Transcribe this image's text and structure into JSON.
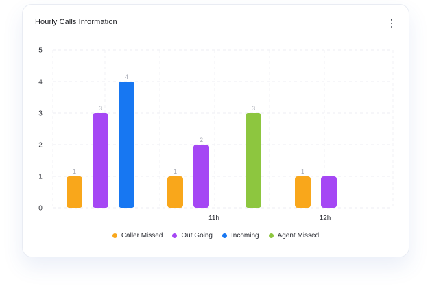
{
  "card": {
    "title": "Hourly Calls Information",
    "menu_icon": "more-vertical-icon"
  },
  "chart_data": {
    "type": "bar",
    "categories": [
      "",
      "11h",
      "12h"
    ],
    "series": [
      {
        "name": "Caller Missed",
        "color": "#f9a71b",
        "values": [
          1,
          1,
          1
        ]
      },
      {
        "name": "Out Going",
        "color": "#a547f4",
        "values": [
          3,
          2,
          1
        ]
      },
      {
        "name": "Incoming",
        "color": "#1777f2",
        "values": [
          4,
          null,
          null
        ]
      },
      {
        "name": "Agent Missed",
        "color": "#8dc63f",
        "values": [
          null,
          3,
          null
        ]
      }
    ],
    "data_labels": [
      [
        "1",
        "3",
        "4",
        ""
      ],
      [
        "1",
        "2",
        "",
        "3"
      ],
      [
        "1",
        "",
        "",
        ""
      ]
    ],
    "yticks": [
      "0",
      "1",
      "2",
      "3",
      "4",
      "5"
    ],
    "ylim": [
      0,
      5
    ],
    "grid": true,
    "legend_position": "bottom"
  }
}
